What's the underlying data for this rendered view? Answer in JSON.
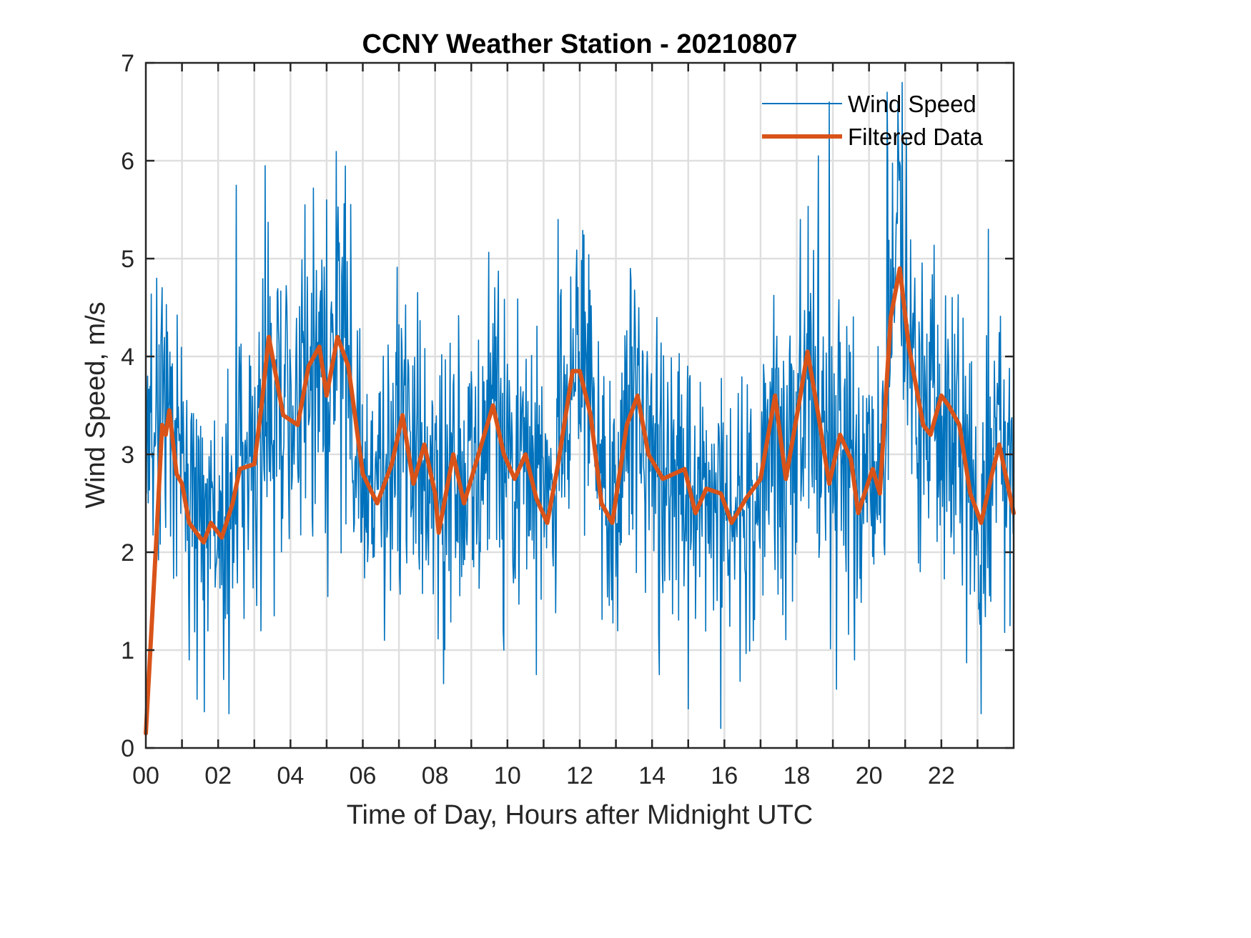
{
  "chart_data": {
    "type": "line",
    "title": "CCNY Weather Station - 20210807",
    "xlabel": "Time of Day, Hours after Midnight UTC",
    "ylabel": "Wind Speed, m/s",
    "xlim": [
      0,
      24
    ],
    "ylim": [
      0,
      7
    ],
    "x_ticks": [
      0,
      2,
      4,
      6,
      8,
      10,
      12,
      14,
      16,
      18,
      20,
      22
    ],
    "x_tick_labels": [
      "00",
      "02",
      "04",
      "06",
      "08",
      "10",
      "12",
      "14",
      "16",
      "18",
      "20",
      "22"
    ],
    "x_minor_ticks_every_hours": 1,
    "y_ticks": [
      0,
      1,
      2,
      3,
      4,
      5,
      6,
      7
    ],
    "y_tick_labels": [
      "0",
      "1",
      "2",
      "3",
      "4",
      "5",
      "6",
      "7"
    ],
    "grid": true,
    "legend": {
      "placement": "top-right",
      "entries": [
        "Wind Speed",
        "Filtered Data"
      ]
    },
    "series": [
      {
        "name": "Wind Speed",
        "color": "#0072BD",
        "style": "thin-line",
        "description": "High-frequency raw wind speed samples fluctuating roughly ±1.5 m/s around the filtered trend",
        "notable_points": [
          {
            "x": 0.05,
            "y": 3.8
          },
          {
            "x": 0.3,
            "y": 4.8
          },
          {
            "x": 0.6,
            "y": 4.25
          },
          {
            "x": 1.2,
            "y": 0.9
          },
          {
            "x": 2.15,
            "y": 0.7
          },
          {
            "x": 2.3,
            "y": 0.35
          },
          {
            "x": 2.5,
            "y": 5.75
          },
          {
            "x": 3.3,
            "y": 5.95
          },
          {
            "x": 3.55,
            "y": 1.35
          },
          {
            "x": 4.4,
            "y": 5.55
          },
          {
            "x": 5.0,
            "y": 5.6
          },
          {
            "x": 5.3,
            "y": 5.2
          },
          {
            "x": 6.6,
            "y": 1.1
          },
          {
            "x": 9.9,
            "y": 1.0
          },
          {
            "x": 10.8,
            "y": 0.75
          },
          {
            "x": 11.4,
            "y": 5.4
          },
          {
            "x": 13.4,
            "y": 4.9
          },
          {
            "x": 14.2,
            "y": 0.75
          },
          {
            "x": 15.0,
            "y": 0.4
          },
          {
            "x": 15.9,
            "y": 0.2
          },
          {
            "x": 18.1,
            "y": 5.4
          },
          {
            "x": 18.6,
            "y": 6.05
          },
          {
            "x": 18.9,
            "y": 6.6
          },
          {
            "x": 19.1,
            "y": 0.6
          },
          {
            "x": 19.6,
            "y": 0.9
          },
          {
            "x": 20.5,
            "y": 6.7
          },
          {
            "x": 20.8,
            "y": 6.6
          },
          {
            "x": 23.1,
            "y": 0.35
          },
          {
            "x": 23.3,
            "y": 5.3
          },
          {
            "x": 23.9,
            "y": 1.25
          }
        ],
        "typical_range": [
          1.5,
          4.5
        ]
      },
      {
        "name": "Filtered Data",
        "color": "#D95319",
        "style": "thick-line",
        "x": [
          0.0,
          0.3,
          0.45,
          0.55,
          0.65,
          0.85,
          1.0,
          1.2,
          1.6,
          1.8,
          2.1,
          2.4,
          2.6,
          3.0,
          3.2,
          3.4,
          3.6,
          3.8,
          4.2,
          4.5,
          4.8,
          5.0,
          5.3,
          5.6,
          6.0,
          6.4,
          6.8,
          7.1,
          7.4,
          7.7,
          8.0,
          8.1,
          8.5,
          8.8,
          9.2,
          9.6,
          9.9,
          10.2,
          10.5,
          10.8,
          11.1,
          11.4,
          11.8,
          12.0,
          12.3,
          12.6,
          12.9,
          13.3,
          13.6,
          13.9,
          14.3,
          14.9,
          15.2,
          15.5,
          15.9,
          16.2,
          16.6,
          17.0,
          17.4,
          17.7,
          18.1,
          18.3,
          18.6,
          18.9,
          19.2,
          19.5,
          19.7,
          20.1,
          20.3,
          20.6,
          20.85,
          21.1,
          21.5,
          21.7,
          22.0,
          22.2,
          22.5,
          22.8,
          23.1,
          23.4,
          23.6,
          24.0
        ],
        "values": [
          0.15,
          2.2,
          3.3,
          3.2,
          3.45,
          2.8,
          2.7,
          2.3,
          2.1,
          2.3,
          2.15,
          2.5,
          2.85,
          2.9,
          3.5,
          4.2,
          3.8,
          3.4,
          3.3,
          3.9,
          4.1,
          3.6,
          4.2,
          3.9,
          2.8,
          2.5,
          2.9,
          3.4,
          2.7,
          3.1,
          2.6,
          2.2,
          3.0,
          2.5,
          3.0,
          3.5,
          3.0,
          2.75,
          3.0,
          2.55,
          2.3,
          2.9,
          3.85,
          3.85,
          3.4,
          2.5,
          2.3,
          3.3,
          3.6,
          3.0,
          2.75,
          2.85,
          2.4,
          2.65,
          2.6,
          2.3,
          2.55,
          2.75,
          3.6,
          2.75,
          3.6,
          4.05,
          3.4,
          2.7,
          3.2,
          2.95,
          2.4,
          2.85,
          2.6,
          4.4,
          4.9,
          4.1,
          3.3,
          3.2,
          3.6,
          3.5,
          3.3,
          2.6,
          2.3,
          2.8,
          3.1,
          2.4
        ]
      }
    ]
  }
}
